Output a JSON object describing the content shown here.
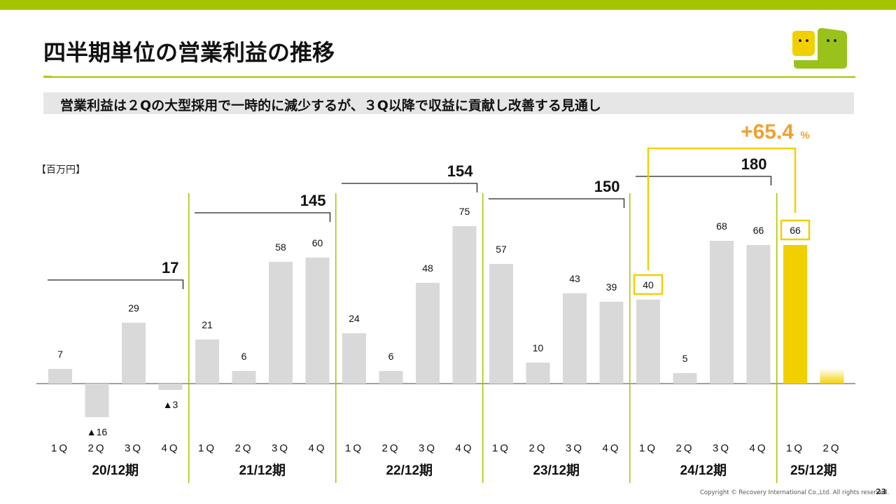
{
  "title": "四半期単位の営業利益の推移",
  "subtitle": "営業利益は２Qの大型採用で一時的に減少するが、３Q以降で収益に貢献し改善する見通し",
  "unit": "【百万円】",
  "footer": {
    "copyright": "Copyright © Recovery International Co.,Ltd. All rights reserved.",
    "page": "23"
  },
  "logo": {
    "name": "speech-bubble-faces-logo",
    "colors": [
      "#f2d000",
      "#9ac21a"
    ]
  },
  "colors": {
    "accent_green": "#a5c400",
    "bar_gray": "#d9d9d9",
    "bar_highlight": "#f2d000",
    "growth_orange": "#f0a030",
    "text": "#111111"
  },
  "chart_data": {
    "type": "bar",
    "categories": [
      "1Q",
      "2Q",
      "3Q",
      "4Q",
      "1Q",
      "2Q",
      "3Q",
      "4Q",
      "1Q",
      "2Q",
      "3Q",
      "4Q",
      "1Q",
      "2Q",
      "3Q",
      "4Q",
      "1Q",
      "2Q",
      "3Q",
      "4Q",
      "1Q",
      "2Q"
    ],
    "values": [
      7,
      -16,
      29,
      -3,
      21,
      6,
      58,
      60,
      24,
      6,
      48,
      75,
      57,
      10,
      43,
      39,
      40,
      5,
      68,
      66,
      66,
      null
    ],
    "value_labels": [
      "7",
      "▲16",
      "29",
      "▲3",
      "21",
      "6",
      "58",
      "60",
      "24",
      "6",
      "48",
      "75",
      "57",
      "10",
      "43",
      "39",
      "40",
      "5",
      "68",
      "66",
      "66",
      ""
    ],
    "bar_styles": [
      "gray",
      "gray",
      "gray",
      "gray",
      "gray",
      "gray",
      "gray",
      "gray",
      "gray",
      "gray",
      "gray",
      "gray",
      "gray",
      "gray",
      "gray",
      "gray",
      "gray",
      "gray",
      "gray",
      "gray",
      "highlight",
      "forecast"
    ],
    "boxed_labels": [
      16,
      20
    ],
    "fiscal_years": [
      {
        "label": "20/12期",
        "total": "17"
      },
      {
        "label": "21/12期",
        "total": "145"
      },
      {
        "label": "22/12期",
        "total": "154"
      },
      {
        "label": "23/12期",
        "total": "150"
      },
      {
        "label": "24/12期",
        "total": "180"
      },
      {
        "label": "25/12期",
        "total": null
      }
    ],
    "growth_callout": {
      "from_index": 16,
      "to_index": 20,
      "value": "+65.4",
      "unit": "%"
    },
    "ylim": [
      -20,
      80
    ],
    "grid": false,
    "legend": "none"
  }
}
